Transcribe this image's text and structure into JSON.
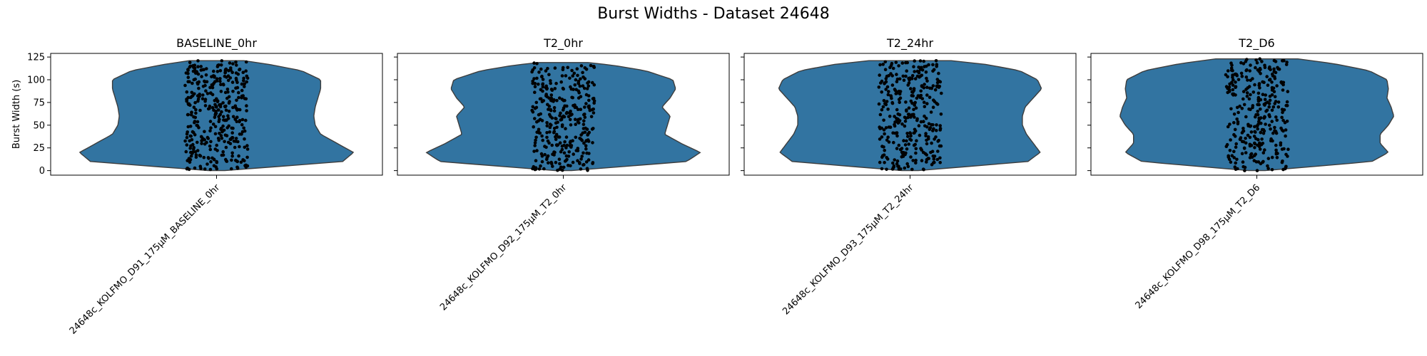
{
  "figure_title": "Burst Widths - Dataset 24648",
  "colors": {
    "violin_fill": "#3274a1",
    "violin_edge": "#3d3d3d",
    "points": "#000000"
  },
  "chart_data": [
    {
      "type": "violin",
      "title": "BASELINE_0hr",
      "category": "24648c_KOLFMO_D91_175µM_BASELINE_0hr",
      "ylabel": "Burst Width (s)",
      "ylim": [
        -5,
        129
      ],
      "yticks": [
        0,
        25,
        50,
        75,
        100,
        125
      ],
      "y_range": [
        0,
        121
      ],
      "n_points": 380,
      "density_profile": [
        [
          0,
          0.06
        ],
        [
          10,
          0.92
        ],
        [
          20,
          1.0
        ],
        [
          30,
          0.88
        ],
        [
          40,
          0.76
        ],
        [
          50,
          0.72
        ],
        [
          60,
          0.71
        ],
        [
          70,
          0.72
        ],
        [
          80,
          0.74
        ],
        [
          90,
          0.76
        ],
        [
          100,
          0.76
        ],
        [
          110,
          0.62
        ],
        [
          117,
          0.38
        ],
        [
          121,
          0.2
        ]
      ]
    },
    {
      "type": "violin",
      "title": "T2_0hr",
      "category": "24648c_KOLFMO_D92_175µM_T2_0hr",
      "ylabel": "",
      "ylim": [
        -5,
        129
      ],
      "yticks": [
        0,
        25,
        50,
        75,
        100,
        125
      ],
      "y_range": [
        0,
        119
      ],
      "n_points": 330,
      "density_profile": [
        [
          0,
          0.06
        ],
        [
          10,
          0.9
        ],
        [
          20,
          1.0
        ],
        [
          30,
          0.86
        ],
        [
          40,
          0.74
        ],
        [
          50,
          0.76
        ],
        [
          60,
          0.78
        ],
        [
          70,
          0.72
        ],
        [
          80,
          0.78
        ],
        [
          90,
          0.82
        ],
        [
          100,
          0.8
        ],
        [
          110,
          0.6
        ],
        [
          116,
          0.36
        ],
        [
          119,
          0.18
        ]
      ]
    },
    {
      "type": "violin",
      "title": "T2_24hr",
      "category": "24648c_KOLFMO_D93_175µM_T2_24hr",
      "ylabel": "",
      "ylim": [
        -5,
        129
      ],
      "yticks": [
        0,
        25,
        50,
        75,
        100,
        125
      ],
      "y_range": [
        0,
        121
      ],
      "n_points": 330,
      "density_profile": [
        [
          0,
          0.06
        ],
        [
          10,
          0.86
        ],
        [
          20,
          0.95
        ],
        [
          30,
          0.9
        ],
        [
          40,
          0.85
        ],
        [
          50,
          0.82
        ],
        [
          60,
          0.82
        ],
        [
          70,
          0.84
        ],
        [
          80,
          0.9
        ],
        [
          90,
          0.96
        ],
        [
          100,
          0.93
        ],
        [
          110,
          0.8
        ],
        [
          117,
          0.55
        ],
        [
          121,
          0.3
        ]
      ]
    },
    {
      "type": "violin",
      "title": "T2_D6",
      "category": "24648c_KOLFMO_D98_175µM_T2_D6",
      "ylabel": "",
      "ylim": [
        -5,
        129
      ],
      "yticks": [
        0,
        25,
        50,
        75,
        100,
        125
      ],
      "y_range": [
        0,
        123
      ],
      "n_points": 320,
      "density_profile": [
        [
          0,
          0.06
        ],
        [
          10,
          0.84
        ],
        [
          20,
          0.96
        ],
        [
          30,
          0.9
        ],
        [
          40,
          0.9
        ],
        [
          50,
          0.96
        ],
        [
          60,
          1.0
        ],
        [
          70,
          0.98
        ],
        [
          80,
          0.95
        ],
        [
          90,
          0.96
        ],
        [
          100,
          0.95
        ],
        [
          110,
          0.82
        ],
        [
          118,
          0.55
        ],
        [
          123,
          0.3
        ]
      ]
    }
  ]
}
